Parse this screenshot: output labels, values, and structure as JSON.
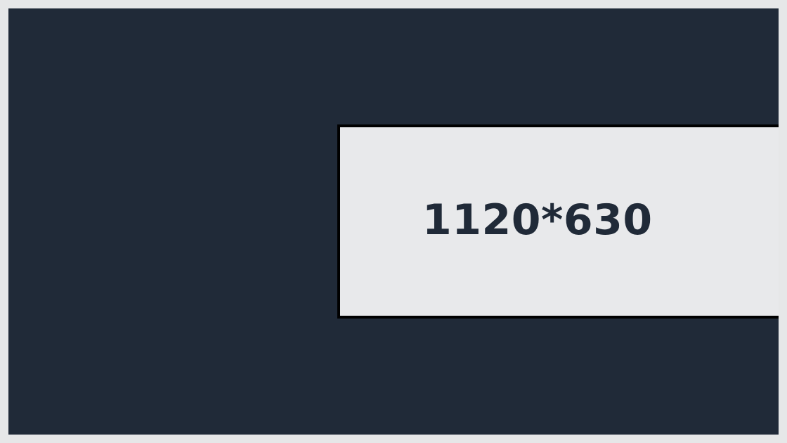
{
  "placeholder": {
    "dimension_label": "1120*630"
  },
  "colors": {
    "outer_background": "#e6e7e8",
    "canvas_background": "#202a38",
    "panel_background": "#e8e9eb",
    "panel_border": "#000000",
    "text": "#202a38"
  }
}
